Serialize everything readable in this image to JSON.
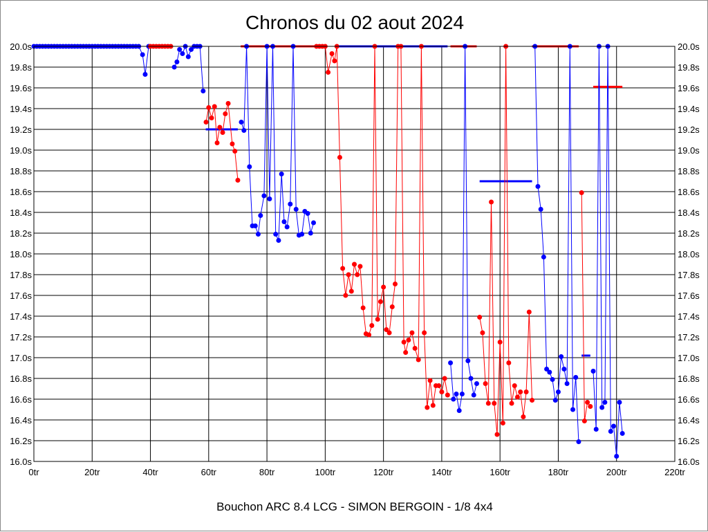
{
  "chart_data": {
    "type": "line",
    "title": "Chronos du 02 aout 2024",
    "xlabel": "Bouchon ARC 8.4 LCG - SIMON BERGOIN - 1/8 4x4",
    "ylabel": "",
    "xlim": [
      0,
      220
    ],
    "ylim": [
      16.0,
      20.0
    ],
    "grid": true,
    "x_ticks": [
      "0tr",
      "20tr",
      "40tr",
      "60tr",
      "80tr",
      "100tr",
      "120tr",
      "140tr",
      "160tr",
      "180tr",
      "200tr",
      "220tr"
    ],
    "y_ticks": [
      "16.0s",
      "16.2s",
      "16.4s",
      "16.6s",
      "16.8s",
      "17.0s",
      "17.2s",
      "17.4s",
      "17.6s",
      "17.8s",
      "18.0s",
      "18.2s",
      "18.4s",
      "18.6s",
      "18.8s",
      "19.0s",
      "19.2s",
      "19.4s",
      "19.6s",
      "19.8s",
      "20.0s"
    ],
    "colors": {
      "blue": "#0000ff",
      "red": "#ff0000"
    },
    "series": [
      {
        "name": "stint-1",
        "color": "#0000ff",
        "points": [
          [
            0,
            20
          ],
          [
            1,
            20
          ],
          [
            2,
            20
          ],
          [
            3,
            20
          ],
          [
            4,
            20
          ],
          [
            5,
            20
          ],
          [
            6,
            20
          ],
          [
            7,
            20
          ],
          [
            8,
            20
          ],
          [
            9,
            20
          ],
          [
            10,
            20
          ],
          [
            11,
            20
          ],
          [
            12,
            20
          ],
          [
            13,
            20
          ],
          [
            14,
            20
          ],
          [
            15,
            20
          ],
          [
            16,
            20
          ],
          [
            17,
            20
          ],
          [
            18,
            20
          ],
          [
            19,
            20
          ],
          [
            20,
            20
          ],
          [
            21,
            20
          ],
          [
            22,
            20
          ],
          [
            23,
            20
          ],
          [
            24,
            20
          ],
          [
            25,
            20
          ],
          [
            26,
            20
          ],
          [
            27,
            20
          ],
          [
            28,
            20
          ],
          [
            29,
            20
          ],
          [
            30,
            20
          ],
          [
            31,
            20
          ],
          [
            32,
            20
          ],
          [
            33,
            20
          ],
          [
            34,
            20
          ],
          [
            35,
            20
          ],
          [
            36,
            20
          ],
          [
            37.3,
            19.92
          ],
          [
            38.2,
            19.73
          ],
          [
            39.4,
            20
          ]
        ]
      },
      {
        "name": "stint-2",
        "color": "#ff0000",
        "points": [
          [
            40,
            20
          ],
          [
            41,
            20
          ],
          [
            42,
            20
          ],
          [
            43,
            20
          ],
          [
            44,
            20
          ],
          [
            45,
            20
          ],
          [
            46,
            20
          ],
          [
            47,
            20
          ]
        ]
      },
      {
        "name": "stint-3",
        "color": "#0000ff",
        "points": [
          [
            48.2,
            19.8
          ],
          [
            49.1,
            19.85
          ],
          [
            50,
            19.97
          ],
          [
            51,
            19.93
          ],
          [
            52,
            20
          ],
          [
            53,
            19.9
          ],
          [
            54,
            19.97
          ],
          [
            55,
            20
          ],
          [
            56,
            20
          ],
          [
            57,
            20
          ],
          [
            58.1,
            19.57
          ]
        ]
      },
      {
        "name": "stint-4",
        "color": "#ff0000",
        "points": [
          [
            59.1,
            19.27
          ],
          [
            60,
            19.41
          ],
          [
            61,
            19.31
          ],
          [
            62,
            19.42
          ],
          [
            62.9,
            19.07
          ],
          [
            63.8,
            19.22
          ],
          [
            64.8,
            19.17
          ],
          [
            65.7,
            19.35
          ],
          [
            66.7,
            19.45
          ],
          [
            68.1,
            19.06
          ],
          [
            69,
            18.99
          ],
          [
            70,
            18.71
          ]
        ]
      },
      {
        "name": "stint-5",
        "color": "#0000ff",
        "points": [
          [
            71.2,
            19.27
          ],
          [
            72.1,
            19.19
          ],
          [
            73,
            20
          ],
          [
            74,
            18.84
          ],
          [
            75,
            18.27
          ],
          [
            76,
            18.27
          ],
          [
            77,
            18.19
          ],
          [
            77.8,
            18.37
          ],
          [
            79,
            18.56
          ],
          [
            80,
            20
          ],
          [
            80.9,
            18.53
          ],
          [
            82,
            20
          ],
          [
            83,
            18.19
          ],
          [
            84,
            18.13
          ],
          [
            85,
            18.77
          ],
          [
            85.9,
            18.31
          ],
          [
            86.9,
            18.26
          ],
          [
            88,
            18.48
          ],
          [
            89,
            20
          ],
          [
            90,
            18.43
          ],
          [
            91,
            18.18
          ],
          [
            92,
            18.19
          ],
          [
            93,
            18.41
          ],
          [
            94,
            18.39
          ],
          [
            95,
            18.2
          ],
          [
            96,
            18.3
          ]
        ]
      },
      {
        "name": "stint-6",
        "color": "#ff0000",
        "points": [
          [
            97,
            20
          ],
          [
            98,
            20
          ],
          [
            99,
            20
          ],
          [
            100,
            20
          ],
          [
            101,
            19.75
          ],
          [
            102.3,
            19.93
          ],
          [
            103.2,
            19.86
          ],
          [
            104,
            20
          ],
          [
            105,
            18.93
          ],
          [
            106,
            17.86
          ],
          [
            107,
            17.6
          ],
          [
            108,
            17.8
          ],
          [
            109,
            17.64
          ],
          [
            110,
            17.9
          ],
          [
            111,
            17.8
          ],
          [
            112,
            17.88
          ],
          [
            113,
            17.48
          ],
          [
            114,
            17.23
          ],
          [
            115,
            17.22
          ],
          [
            116,
            17.31
          ],
          [
            117,
            20
          ],
          [
            118,
            17.37
          ],
          [
            119,
            17.54
          ],
          [
            120,
            17.68
          ],
          [
            121,
            17.27
          ],
          [
            122,
            17.24
          ],
          [
            123,
            17.49
          ],
          [
            124,
            17.71
          ],
          [
            125,
            20
          ],
          [
            126,
            20
          ],
          [
            127,
            17.15
          ],
          [
            127.6,
            17.05
          ],
          [
            128.6,
            17.17
          ],
          [
            129.8,
            17.24
          ],
          [
            130.8,
            17.09
          ],
          [
            132,
            16.98
          ],
          [
            133,
            20
          ],
          [
            134,
            17.24
          ],
          [
            135,
            16.52
          ],
          [
            136,
            16.78
          ],
          [
            137,
            16.54
          ],
          [
            138,
            16.73
          ],
          [
            139,
            16.73
          ],
          [
            140,
            16.67
          ],
          [
            141,
            16.8
          ],
          [
            142,
            16.64
          ]
        ]
      },
      {
        "name": "stint-7",
        "color": "#0000ff",
        "points": [
          [
            143,
            16.95
          ],
          [
            144,
            16.6
          ],
          [
            145,
            16.65
          ],
          [
            146,
            16.49
          ],
          [
            147,
            16.65
          ],
          [
            148,
            20
          ],
          [
            149,
            16.97
          ],
          [
            150,
            16.8
          ],
          [
            151,
            16.64
          ],
          [
            152,
            16.75
          ]
        ]
      },
      {
        "name": "stint-8",
        "color": "#ff0000",
        "points": [
          [
            153,
            17.39
          ],
          [
            154,
            17.24
          ],
          [
            155,
            16.75
          ],
          [
            156,
            16.56
          ],
          [
            157,
            18.5
          ],
          [
            158,
            16.56
          ],
          [
            159,
            16.26
          ],
          [
            160,
            17.15
          ],
          [
            161,
            16.37
          ],
          [
            162,
            20
          ],
          [
            163,
            16.95
          ],
          [
            164,
            16.56
          ],
          [
            165,
            16.73
          ],
          [
            166,
            16.62
          ],
          [
            167,
            16.67
          ],
          [
            168,
            16.43
          ],
          [
            169,
            16.67
          ],
          [
            170,
            17.44
          ],
          [
            171,
            16.59
          ]
        ]
      },
      {
        "name": "stint-9",
        "color": "#0000ff",
        "points": [
          [
            172,
            20
          ],
          [
            173,
            18.65
          ],
          [
            174,
            18.43
          ],
          [
            175,
            17.97
          ],
          [
            176,
            16.89
          ],
          [
            177,
            16.86
          ],
          [
            178,
            16.79
          ],
          [
            179,
            16.59
          ],
          [
            180,
            16.67
          ],
          [
            181,
            17.01
          ],
          [
            182,
            16.89
          ],
          [
            183,
            16.75
          ],
          [
            184,
            20
          ],
          [
            185,
            16.5
          ],
          [
            186,
            16.81
          ],
          [
            187,
            16.19
          ]
        ]
      },
      {
        "name": "stint-10",
        "color": "#ff0000",
        "points": [
          [
            188,
            18.59
          ],
          [
            189,
            16.39
          ],
          [
            190,
            16.57
          ],
          [
            191,
            16.53
          ]
        ]
      },
      {
        "name": "stint-11",
        "color": "#0000ff",
        "points": [
          [
            192,
            16.87
          ],
          [
            193,
            16.31
          ],
          [
            194,
            20
          ],
          [
            195,
            16.52
          ],
          [
            196,
            16.57
          ],
          [
            197,
            20
          ],
          [
            198,
            16.29
          ],
          [
            199,
            16.34
          ],
          [
            200,
            16.05
          ],
          [
            201,
            16.57
          ],
          [
            202,
            16.27
          ]
        ]
      }
    ],
    "top_lines": [
      {
        "color": "#ff0000",
        "from": 71,
        "to": 100
      },
      {
        "color": "#0000ff",
        "from": 104,
        "to": 142
      },
      {
        "color": "#ff0000",
        "from": 143,
        "to": 152
      },
      {
        "color": "#ff0000",
        "from": 171,
        "to": 187
      }
    ],
    "averages": [
      {
        "color": "#0000ff",
        "from": 59,
        "to": 70,
        "value": 19.2
      },
      {
        "color": "#0000ff",
        "from": 153,
        "to": 171,
        "value": 18.7
      },
      {
        "color": "#0000ff",
        "from": 188,
        "to": 191,
        "value": 17.02
      },
      {
        "color": "#ff0000",
        "from": 192,
        "to": 202,
        "value": 19.61
      }
    ]
  }
}
